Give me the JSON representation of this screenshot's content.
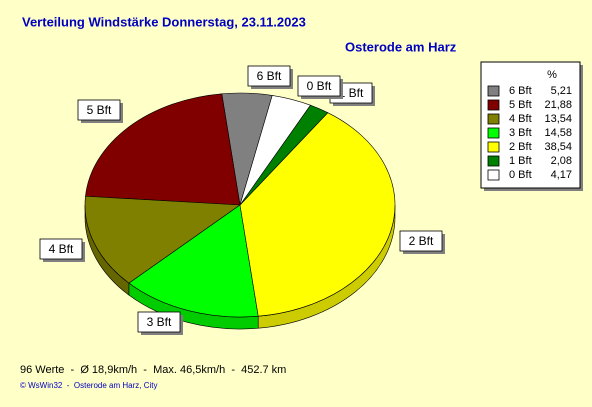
{
  "chart_data": {
    "type": "pie",
    "title": "Verteilung Windstärke  Donnerstag, 23.11.2023",
    "subtitle": "Osterode am Harz",
    "legend_header": "%",
    "categories": [
      "6 Bft",
      "5 Bft",
      "4 Bft",
      "3 Bft",
      "2 Bft",
      "1 Bft",
      "0 Bft"
    ],
    "values": [
      5.21,
      21.88,
      13.54,
      14.58,
      38.54,
      2.08,
      4.17
    ],
    "value_labels": [
      "5,21",
      "21,88",
      "13,54",
      "14,58",
      "38,54",
      "2,08",
      "4,17"
    ],
    "colors": [
      "#808080",
      "#800000",
      "#808000",
      "#00ff00",
      "#ffff00",
      "#008000",
      "#ffffff"
    ],
    "footer": "96 Werte  -  Ø 18,9km/h  -  Max. 46,5km/h  -  452.7 km",
    "credit": "© WsWin32  -  Osterode am Harz, City"
  }
}
